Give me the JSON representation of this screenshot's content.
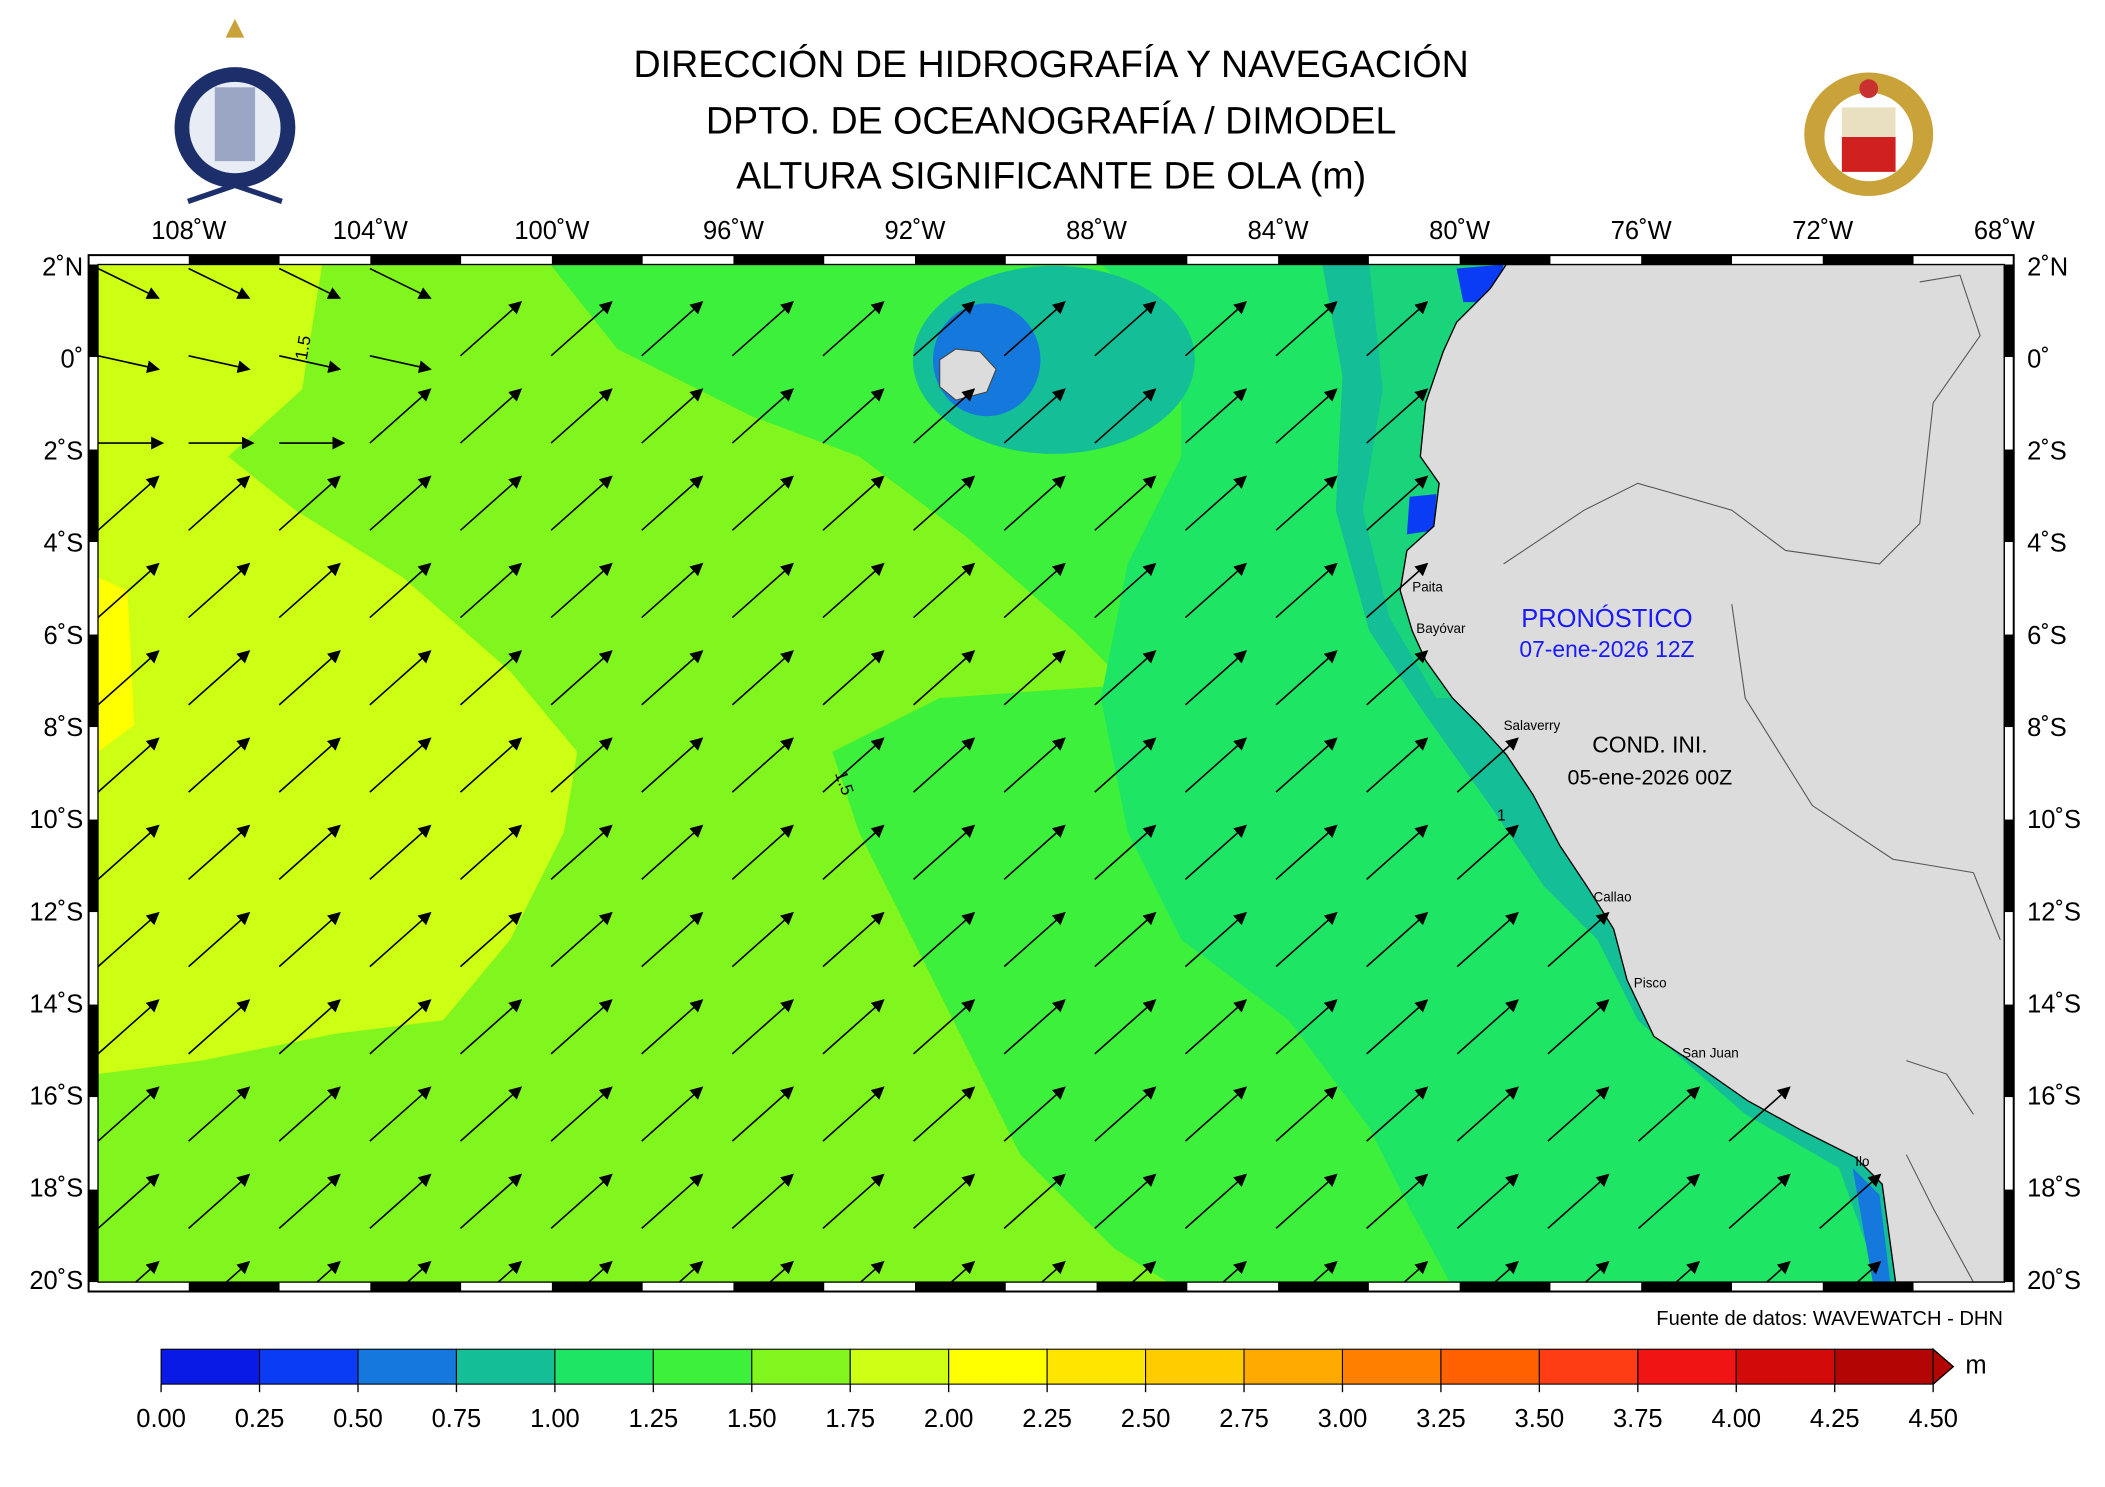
{
  "header": {
    "lines": [
      "DIRECCIÓN DE HIDROGRAFÍA Y NAVEGACIÓN",
      "DPTO. DE OCEANOGRAFÍA / DIMODEL",
      "ALTURA SIGNIFICANTE DE OLA (m)"
    ]
  },
  "map": {
    "lon_labels": [
      "108˚W",
      "104˚W",
      "100˚W",
      "96˚W",
      "92˚W",
      "88˚W",
      "84˚W",
      "80˚W",
      "76˚W",
      "72˚W",
      "68˚W"
    ],
    "lat_labels": [
      "2˚N",
      "0˚",
      "2˚S",
      "4˚S",
      "6˚S",
      "8˚S",
      "10˚S",
      "12˚S",
      "14˚S",
      "16˚S",
      "18˚S",
      "20˚S"
    ],
    "contour_labels": [
      "1.5",
      "1.5",
      "1"
    ],
    "cities": [
      "Paita",
      "Bayóvar",
      "Salaverry",
      "Callao",
      "Pisco",
      "San Juan",
      "Ilo"
    ],
    "forecast": {
      "label": "PRONÓSTICO",
      "date": "07-ene-2026 12Z"
    },
    "initial": {
      "label": "COND. INI.",
      "date": "05-ene-2026 00Z"
    }
  },
  "source": "Fuente de datos: WAVEWATCH - DHN",
  "colorbar": {
    "unit": "m",
    "ticks": [
      {
        "value": 0,
        "label": "0.00"
      },
      {
        "value": 0.25,
        "label": "0.25"
      },
      {
        "value": 0.5,
        "label": "0.50"
      },
      {
        "value": 0.75,
        "label": "0.75"
      },
      {
        "value": 1,
        "label": "1.00"
      },
      {
        "value": 1.25,
        "label": "1.25"
      },
      {
        "value": 1.5,
        "label": "1.50"
      },
      {
        "value": 1.75,
        "label": "1.75"
      },
      {
        "value": 2,
        "label": "2.00"
      },
      {
        "value": 2.25,
        "label": "2.25"
      },
      {
        "value": 2.5,
        "label": "2.50"
      },
      {
        "value": 2.75,
        "label": "2.75"
      },
      {
        "value": 3,
        "label": "3.00"
      },
      {
        "value": 3.25,
        "label": "3.25"
      },
      {
        "value": 3.5,
        "label": "3.50"
      },
      {
        "value": 3.75,
        "label": "3.75"
      },
      {
        "value": 4,
        "label": "4.00"
      },
      {
        "value": 4.25,
        "label": "4.25"
      },
      {
        "value": 4.5,
        "label": "4.50"
      }
    ],
    "colors": [
      "#0a1ae6",
      "#0a3cf5",
      "#1478dc",
      "#14be96",
      "#1ee664",
      "#3cf03c",
      "#80f51e",
      "#ccff14",
      "#ffff00",
      "#ffe600",
      "#ffcc00",
      "#ffaa00",
      "#ff8000",
      "#ff6000",
      "#ff3c14",
      "#f01414",
      "#d20a0a",
      "#b40505"
    ]
  }
}
